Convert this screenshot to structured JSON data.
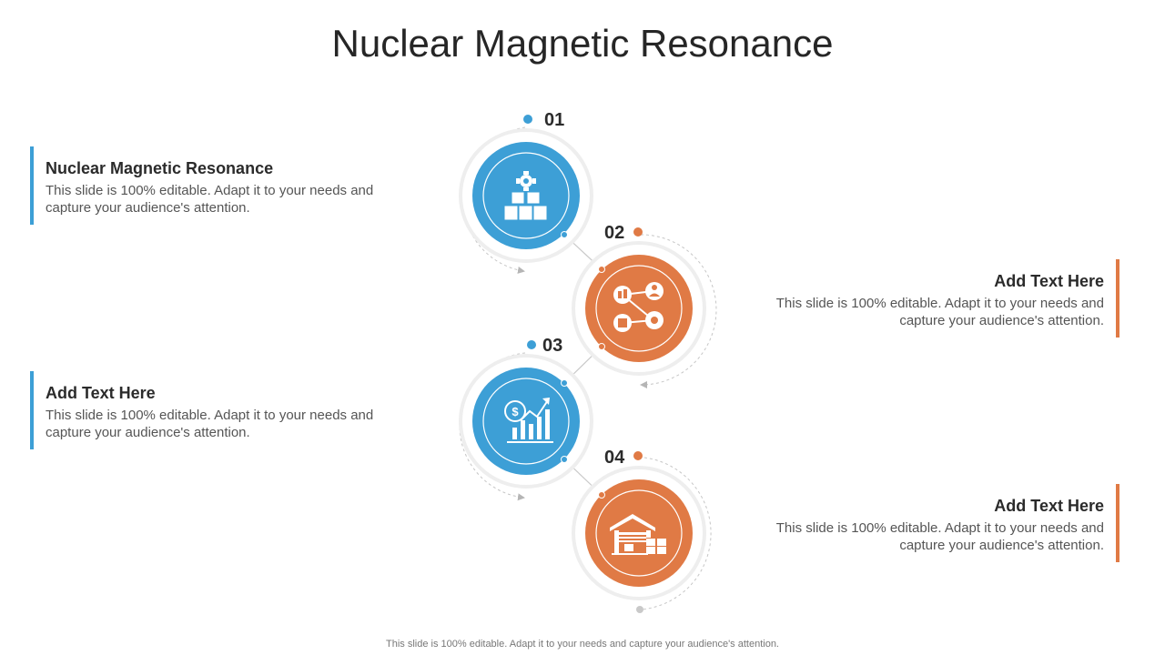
{
  "title": "Nuclear Magnetic Resonance",
  "colors": {
    "blue": "#3d9fd6",
    "orange": "#e07a45",
    "ring": "#eeeeee"
  },
  "steps": [
    {
      "number": "01",
      "heading": "Nuclear Magnetic Resonance",
      "text": "This slide is 100% editable. Adapt it to your needs and capture your audience's attention.",
      "icon": "boxes-gear-icon",
      "color": "blue"
    },
    {
      "number": "02",
      "heading": "Add Text Here",
      "text": "This slide is 100% editable. Adapt it to your needs and capture your audience's attention.",
      "icon": "network-icon",
      "color": "orange"
    },
    {
      "number": "03",
      "heading": "Add Text Here",
      "text": "This slide is 100% editable. Adapt it to your needs and capture your audience's attention.",
      "icon": "growth-chart-icon",
      "color": "blue"
    },
    {
      "number": "04",
      "heading": "Add Text Here",
      "text": "This slide is 100% editable. Adapt it to your needs and capture your audience's attention.",
      "icon": "warehouse-icon",
      "color": "orange"
    }
  ],
  "footer": "This slide is 100% editable. Adapt it to your needs and capture your audience's attention."
}
